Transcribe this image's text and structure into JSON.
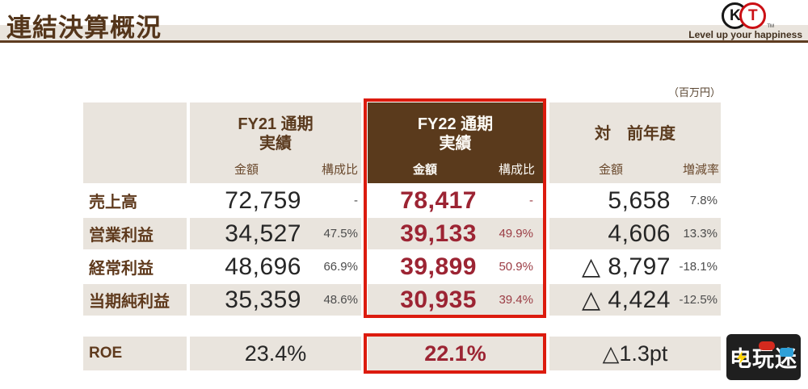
{
  "slide": {
    "title": "連結決算概況",
    "unit_note": "（百万円）"
  },
  "logo": {
    "k": "K",
    "t": "T",
    "tm": "TM",
    "tagline": "Level up your happiness"
  },
  "table": {
    "groups": {
      "fy21": {
        "title": "FY21 通期",
        "subtitle": "実績",
        "col_amount": "金額",
        "col_ratio": "構成比"
      },
      "fy22": {
        "title": "FY22 通期",
        "subtitle": "実績",
        "col_amount": "金額",
        "col_ratio": "構成比"
      },
      "yoy": {
        "title": "対　前年度",
        "col_amount": "金額",
        "col_ratio": "増減率"
      }
    },
    "rows": [
      {
        "label": "売上高",
        "fy21_amount": "72,759",
        "fy21_ratio": "-",
        "fy22_amount": "78,417",
        "fy22_ratio": "-",
        "yoy_amount": "5,658",
        "yoy_rate": "7.8%"
      },
      {
        "label": "営業利益",
        "fy21_amount": "34,527",
        "fy21_ratio": "47.5%",
        "fy22_amount": "39,133",
        "fy22_ratio": "49.9%",
        "yoy_amount": "4,606",
        "yoy_rate": "13.3%"
      },
      {
        "label": "経常利益",
        "fy21_amount": "48,696",
        "fy21_ratio": "66.9%",
        "fy22_amount": "39,899",
        "fy22_ratio": "50.9%",
        "yoy_amount": "△ 8,797",
        "yoy_rate": "-18.1%"
      },
      {
        "label": "当期純利益",
        "fy21_amount": "35,359",
        "fy21_ratio": "48.6%",
        "fy22_amount": "30,935",
        "fy22_ratio": "39.4%",
        "yoy_amount": "△ 4,424",
        "yoy_rate": "-12.5%"
      }
    ],
    "roe": {
      "label": "ROE",
      "fy21": "23.4%",
      "fy22": "22.1%",
      "yoy": "△1.3pt"
    }
  },
  "watermark": {
    "text": "电玩迷"
  },
  "colors": {
    "accent_red": "#dc1b0e",
    "header_brown": "#5a3a1c",
    "beige": "#e9e4dd",
    "value_red": "#9c2433",
    "text_brown": "#5f3a1d"
  }
}
